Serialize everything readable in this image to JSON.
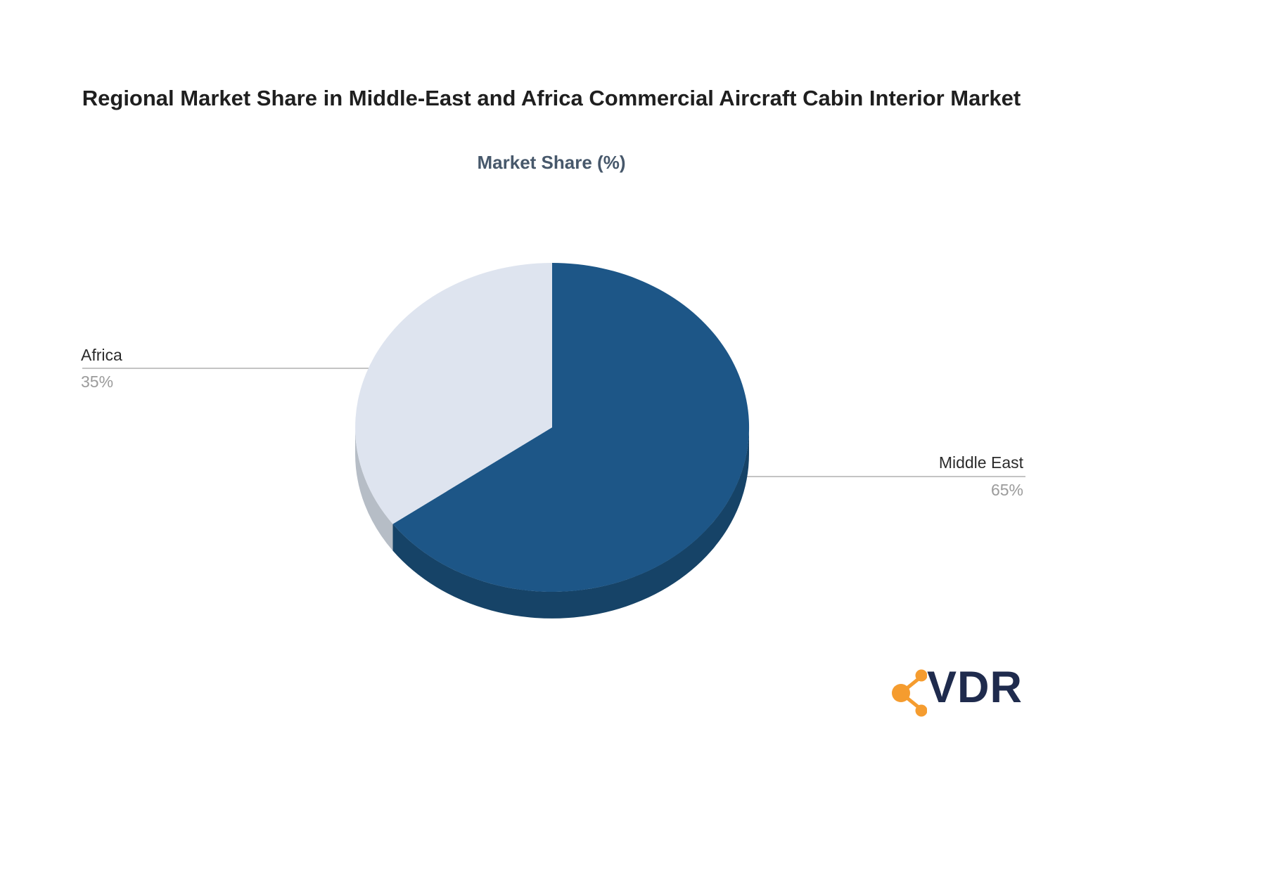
{
  "page": {
    "title": "Regional Market Share in Middle-East and Africa Commercial Aircraft Cabin Interior Market",
    "subtitle": "Market Share (%)"
  },
  "chart_data": {
    "type": "pie",
    "title": "Regional Market Share in Middle-East and Africa Commercial Aircraft Cabin Interior Market",
    "subtitle": "Market Share (%)",
    "effect": "3d",
    "start_angle_deg": -90,
    "direction": "clockwise",
    "legend_position": "none",
    "labels_style": "leader-lines",
    "slices": [
      {
        "label": "Middle East",
        "value": 65,
        "value_label": "65%",
        "color": "#1D5687",
        "side_color": "#164367"
      },
      {
        "label": "Africa",
        "value": 35,
        "value_label": "35%",
        "color": "#DEE4EF",
        "side_color": "#B6BDC6"
      }
    ]
  },
  "leader": {
    "line_color": "#b0b0b0",
    "dot_color": "#8f9498"
  },
  "logo": {
    "text": "VDR",
    "icon": "share-molecule-icon",
    "icon_color": "#F59C2F",
    "text_color": "#1F2B4D"
  }
}
